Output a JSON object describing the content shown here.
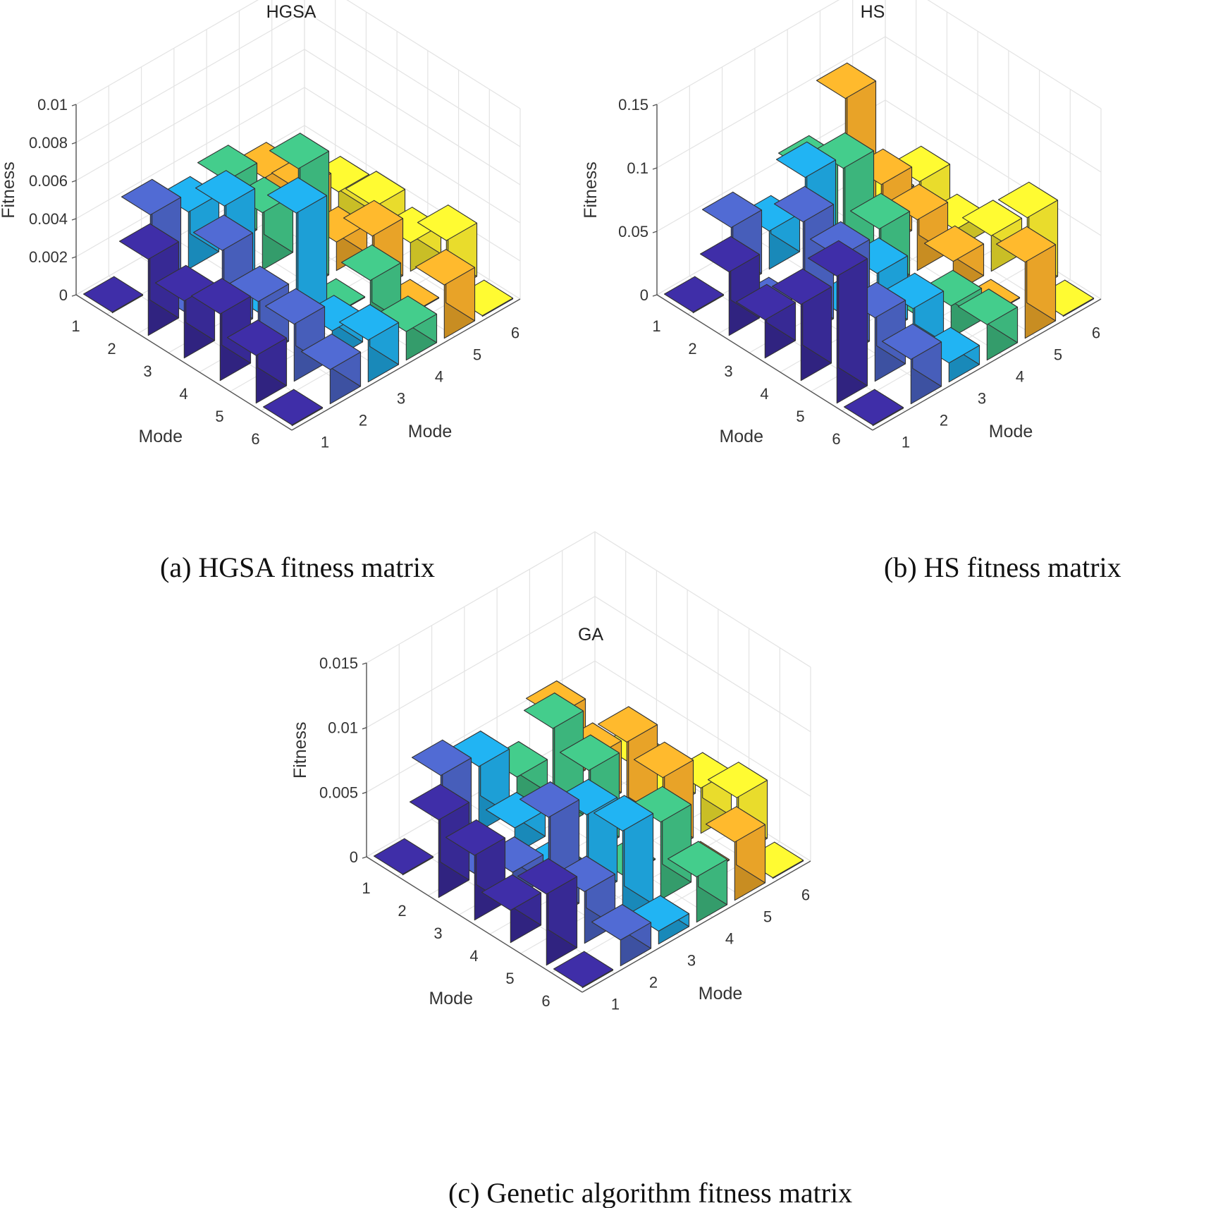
{
  "chart_data": [
    {
      "type": "bar3d",
      "title": "HGSA",
      "caption": "(a)  HGSA fitness matrix",
      "zlabel": "Fitness",
      "xlabel": "Mode",
      "ylabel": "Mode",
      "zlim": [
        0,
        0.01
      ],
      "zticks": [
        0,
        0.002,
        0.004,
        0.006,
        0.008,
        0.01
      ],
      "ztick_labels": [
        "0",
        "0.002",
        "0.004",
        "0.006",
        "0.008",
        "0.01"
      ],
      "row_categories": [
        "1",
        "2",
        "3",
        "4",
        "5",
        "6"
      ],
      "col_categories": [
        "1",
        "2",
        "3",
        "4",
        "5",
        "6"
      ],
      "values": [
        [
          0.0,
          0.004,
          0.003,
          0.0035,
          0.0025,
          0.0
        ],
        [
          0.004,
          0.0,
          0.0045,
          0.003,
          0.003,
          0.0018
        ],
        [
          0.003,
          0.0045,
          0.0,
          0.0065,
          0.0015,
          0.0022
        ],
        [
          0.0035,
          0.003,
          0.0065,
          0.0,
          0.003,
          0.0015
        ],
        [
          0.0025,
          0.003,
          0.0015,
          0.003,
          0.0,
          0.0028
        ],
        [
          0.0,
          0.0018,
          0.0022,
          0.0015,
          0.0028,
          0.0
        ]
      ]
    },
    {
      "type": "bar3d",
      "title": "HS",
      "caption": "(b)  HS fitness matrix",
      "zlabel": "Fitness",
      "xlabel": "Mode",
      "ylabel": "Mode",
      "zlim": [
        0,
        0.15
      ],
      "zticks": [
        0,
        0.05,
        0.1,
        0.15
      ],
      "ztick_labels": [
        "0",
        "0.05",
        "0.1",
        "0.15"
      ],
      "row_categories": [
        "1",
        "2",
        "3",
        "4",
        "5",
        "6"
      ],
      "col_categories": [
        "1",
        "2",
        "3",
        "4",
        "5",
        "6"
      ],
      "values": [
        [
          0.0,
          0.05,
          0.03,
          0.06,
          0.1,
          0.0
        ],
        [
          0.05,
          0.0,
          0.09,
          0.08,
          0.05,
          0.035
        ],
        [
          0.03,
          0.09,
          0.0,
          0.05,
          0.04,
          0.015
        ],
        [
          0.06,
          0.08,
          0.05,
          0.0,
          0.025,
          0.028
        ],
        [
          0.1,
          0.05,
          0.04,
          0.025,
          0.0,
          0.06
        ],
        [
          0.0,
          0.035,
          0.015,
          0.028,
          0.06,
          0.0
        ]
      ]
    },
    {
      "type": "bar3d",
      "title": "GA",
      "caption": "(c)  Genetic algorithm fitness matrix",
      "zlabel": "Fitness",
      "xlabel": "Mode",
      "ylabel": "Mode",
      "zlim": [
        0,
        0.015
      ],
      "zticks": [
        0,
        0.005,
        0.01,
        0.015
      ],
      "ztick_labels": [
        "0",
        "0.005",
        "0.01",
        "0.015"
      ],
      "row_categories": [
        "1",
        "2",
        "3",
        "4",
        "5",
        "6"
      ],
      "col_categories": [
        "1",
        "2",
        "3",
        "4",
        "5",
        "6"
      ],
      "values": [
        [
          0.0,
          0.006,
          0.005,
          0.0025,
          0.0055,
          0.0
        ],
        [
          0.006,
          0.0,
          0.002,
          0.008,
          0.004,
          0.002
        ],
        [
          0.005,
          0.002,
          0.0,
          0.0065,
          0.007,
          0.001
        ],
        [
          0.0025,
          0.008,
          0.0065,
          0.0,
          0.006,
          0.0035
        ],
        [
          0.0055,
          0.004,
          0.007,
          0.006,
          0.0,
          0.0045
        ],
        [
          0.0,
          0.002,
          0.001,
          0.0035,
          0.0045,
          0.0
        ]
      ]
    }
  ],
  "palette": [
    "#3a2b9c",
    "#4b63c4",
    "#1fa7e1",
    "#3fbe82",
    "#f4ac2a",
    "#f5e82e"
  ],
  "edge_color": "#333333",
  "grid_color": "#e3e3e3"
}
